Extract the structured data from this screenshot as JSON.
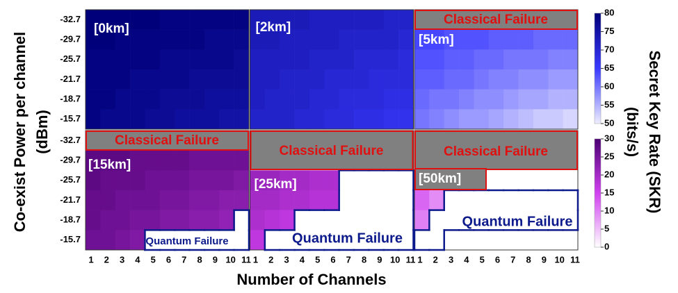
{
  "chart_data": {
    "type": "heatmap",
    "x_label": "Number of Channels",
    "y_label": [
      "Co-exist Power per channel",
      "(dBm)"
    ],
    "colorbar_label": [
      "Secret Key Rate (SKR)",
      "(bits/s)"
    ],
    "x_categories": [
      1,
      2,
      3,
      4,
      5,
      6,
      7,
      8,
      9,
      10,
      11
    ],
    "y_categories": [
      -32.7,
      -29.7,
      -25.7,
      -21.7,
      -18.7,
      -15.7
    ],
    "colorbars": [
      {
        "lim": [
          50,
          80
        ],
        "ticks": [
          50,
          55,
          60,
          65,
          70,
          75,
          80
        ],
        "colors": [
          "#eeeeff",
          "#3a3aff",
          "#00007a"
        ]
      },
      {
        "lim": [
          0,
          30
        ],
        "ticks": [
          0,
          5,
          10,
          15,
          20,
          25,
          30
        ],
        "colors": [
          "#ffffff",
          "#d040f0",
          "#4b0072"
        ]
      }
    ],
    "panels": [
      {
        "label": "[0km]",
        "colorbar": 0,
        "values": [
          [
            80,
            80,
            80,
            80,
            80,
            79,
            79,
            79,
            79,
            79,
            79
          ],
          [
            80,
            80,
            79,
            79,
            79,
            79,
            79,
            79,
            78,
            78,
            78
          ],
          [
            79,
            79,
            79,
            79,
            79,
            78,
            78,
            78,
            78,
            78,
            77
          ],
          [
            79,
            79,
            79,
            78,
            78,
            78,
            78,
            77,
            77,
            77,
            77
          ],
          [
            79,
            79,
            78,
            78,
            78,
            77,
            77,
            77,
            76,
            76,
            76
          ],
          [
            79,
            78,
            78,
            78,
            77,
            77,
            76,
            76,
            76,
            75,
            75
          ]
        ]
      },
      {
        "label": "[2km]",
        "colorbar": 0,
        "values": [
          [
            73,
            73,
            73,
            73,
            72,
            72,
            72,
            72,
            72,
            71,
            71
          ],
          [
            73,
            73,
            72,
            72,
            72,
            72,
            71,
            71,
            71,
            71,
            70
          ],
          [
            72,
            72,
            72,
            72,
            71,
            71,
            71,
            70,
            70,
            70,
            69
          ],
          [
            72,
            72,
            71,
            71,
            71,
            70,
            70,
            70,
            69,
            69,
            69
          ],
          [
            72,
            71,
            71,
            71,
            70,
            70,
            69,
            69,
            69,
            68,
            68
          ],
          [
            71,
            71,
            71,
            70,
            70,
            69,
            69,
            68,
            68,
            67,
            67
          ]
        ]
      },
      {
        "label": "[5km]",
        "colorbar": 0,
        "classical_failure": "Classical Failure",
        "values": [
          [
            null,
            null,
            null,
            null,
            null,
            null,
            null,
            null,
            null,
            null,
            null
          ],
          [
            64,
            64,
            63,
            63,
            63,
            62,
            62,
            62,
            61,
            61,
            61
          ],
          [
            63,
            63,
            62,
            62,
            61,
            61,
            60,
            60,
            60,
            59,
            59
          ],
          [
            62,
            62,
            61,
            61,
            60,
            59,
            59,
            58,
            58,
            57,
            57
          ],
          [
            61,
            60,
            60,
            59,
            58,
            58,
            57,
            56,
            56,
            55,
            55
          ],
          [
            60,
            59,
            58,
            57,
            57,
            56,
            55,
            54,
            53,
            53,
            52
          ]
        ]
      },
      {
        "label": "[15km]",
        "colorbar": 1,
        "classical_failure": "Classical Failure",
        "quantum_failure": "Quantum Failure",
        "values": [
          [
            null,
            null,
            null,
            null,
            null,
            null,
            null,
            null,
            null,
            null,
            null
          ],
          [
            28,
            28,
            28,
            27,
            27,
            27,
            27,
            26,
            26,
            26,
            26
          ],
          [
            28,
            27,
            27,
            27,
            26,
            26,
            26,
            25,
            25,
            25,
            24
          ],
          [
            27,
            27,
            26,
            26,
            26,
            25,
            25,
            24,
            24,
            23,
            23
          ],
          [
            27,
            26,
            26,
            25,
            25,
            24,
            24,
            23,
            23,
            22,
            null
          ],
          [
            26,
            26,
            25,
            24,
            null,
            null,
            null,
            null,
            null,
            null,
            null
          ]
        ]
      },
      {
        "label": "[25km]",
        "colorbar": 1,
        "classical_failure": "Classical Failure",
        "quantum_failure": "Quantum Failure",
        "values": [
          [
            null,
            null,
            null,
            null,
            null,
            null,
            null,
            null,
            null,
            null,
            null
          ],
          [
            null,
            null,
            null,
            null,
            null,
            null,
            null,
            null,
            null,
            null,
            null
          ],
          [
            21,
            21,
            20,
            20,
            19,
            19,
            null,
            null,
            null,
            null,
            null
          ],
          [
            20,
            20,
            19,
            19,
            18,
            18,
            null,
            null,
            null,
            null,
            null
          ],
          [
            19,
            18,
            17,
            null,
            null,
            null,
            null,
            null,
            null,
            null,
            null
          ],
          [
            17,
            null,
            null,
            null,
            null,
            null,
            null,
            null,
            null,
            null,
            null
          ]
        ]
      },
      {
        "label": "[50km]",
        "colorbar": 1,
        "classical_failure": "Classical Failure",
        "quantum_failure": "Quantum Failure",
        "values": [
          [
            null,
            null,
            null,
            null,
            null,
            null,
            null,
            null,
            null,
            null,
            null
          ],
          [
            null,
            null,
            null,
            null,
            null,
            null,
            null,
            null,
            null,
            null,
            null
          ],
          [
            null,
            null,
            null,
            null,
            null,
            null,
            null,
            null,
            null,
            null,
            null
          ],
          [
            12,
            9,
            null,
            null,
            null,
            null,
            null,
            null,
            null,
            null,
            null
          ],
          [
            10,
            null,
            null,
            null,
            null,
            null,
            null,
            null,
            null,
            null,
            null
          ],
          [
            null,
            null,
            null,
            null,
            null,
            null,
            null,
            null,
            null,
            null,
            null
          ]
        ]
      }
    ]
  }
}
